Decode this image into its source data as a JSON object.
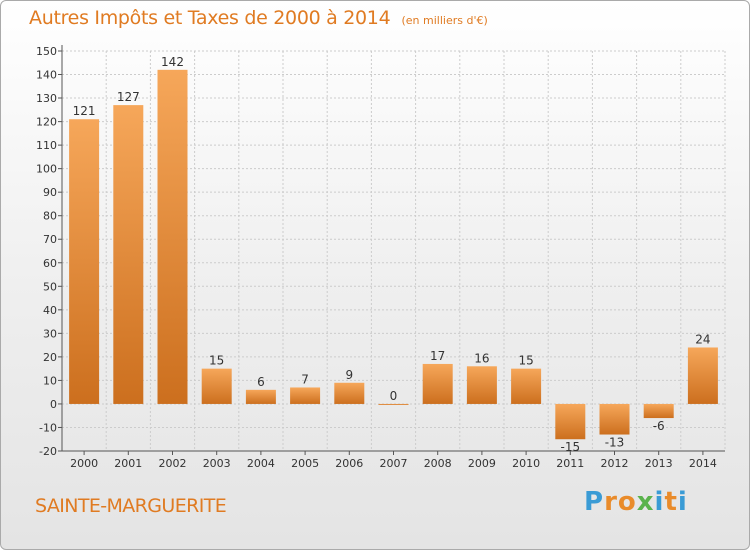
{
  "header": {
    "title": "Autres Impôts et Taxes de 2000 à 2014",
    "subtitle": "(en milliers d'€)"
  },
  "footer": {
    "commune": "SAINTE-MARGUERITE",
    "logo_letters": [
      "P",
      "r",
      "o",
      "x",
      "i",
      "t",
      "i"
    ],
    "logo_colors": [
      "#3a9bd5",
      "#e98b2a",
      "#e98b2a",
      "#5ab34c",
      "#3a9bd5",
      "#e98b2a",
      "#3a9bd5"
    ]
  },
  "colors": {
    "title": "#e07b22",
    "bar_light": "#f6a75a",
    "bar_dark": "#cc6f1e",
    "grid": "#cccccc"
  },
  "chart_data": {
    "type": "bar",
    "categories": [
      "2000",
      "2001",
      "2002",
      "2003",
      "2004",
      "2005",
      "2006",
      "2007",
      "2008",
      "2009",
      "2010",
      "2011",
      "2012",
      "2013",
      "2014"
    ],
    "values": [
      121,
      127,
      142,
      15,
      6,
      7,
      9,
      0,
      17,
      16,
      15,
      -15,
      -13,
      -6,
      24
    ],
    "data_labels": [
      "121",
      "127",
      "142",
      "15",
      "6",
      "7",
      "9",
      "0",
      "17",
      "16",
      "15",
      "-15",
      "-13",
      "-6",
      "24"
    ],
    "yticks": [
      150,
      140,
      130,
      120,
      110,
      100,
      90,
      80,
      70,
      60,
      50,
      40,
      30,
      20,
      10,
      0,
      -10,
      -20
    ],
    "ylim": [
      -20,
      150
    ],
    "grid": "horizontal",
    "legend": "none"
  }
}
